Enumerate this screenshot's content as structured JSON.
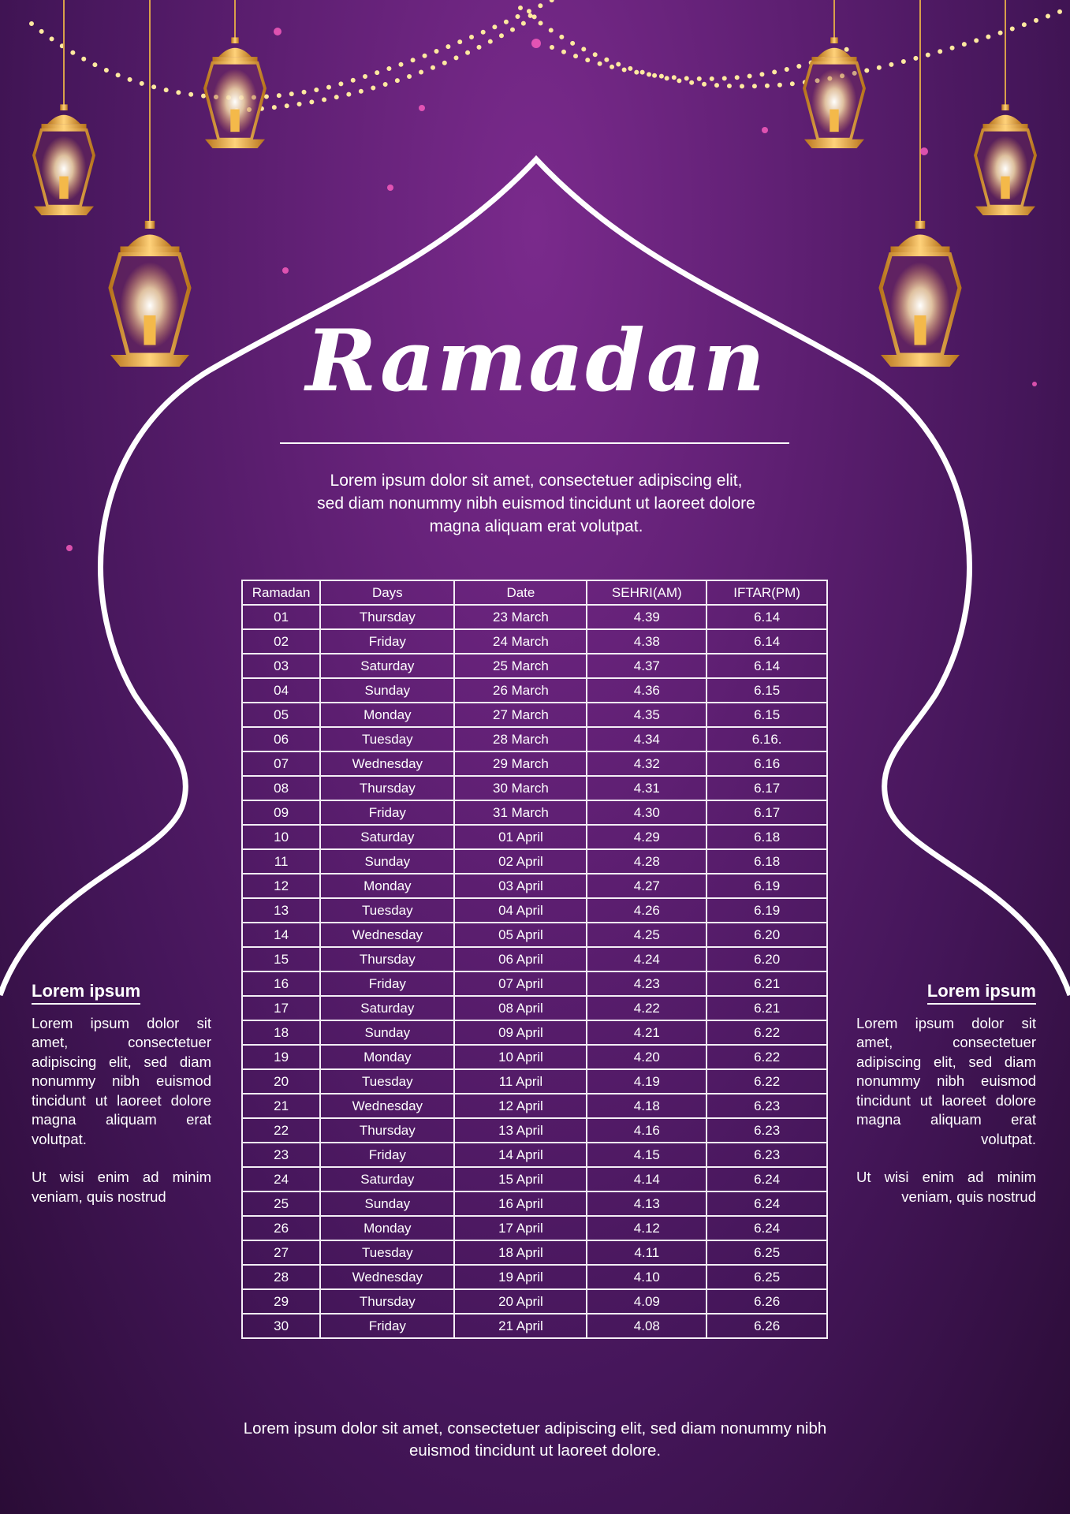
{
  "title": "Ramadan",
  "intro": "Lorem ipsum dolor sit amet, consectetuer adipiscing elit, sed diam nonummy nibh euismod tincidunt ut laoreet dolore magna aliquam erat volutpat.",
  "colors": {
    "background": "#5e1f72",
    "lantern_gold": "#e8a73a",
    "lines": "#ffffff"
  },
  "table": {
    "headers": [
      "Ramadan",
      "Days",
      "Date",
      "SEHRI(AM)",
      "IFTAR(PM)"
    ],
    "rows": [
      [
        "01",
        "Thursday",
        "23 March",
        "4.39",
        "6.14"
      ],
      [
        "02",
        "Friday",
        "24 March",
        "4.38",
        "6.14"
      ],
      [
        "03",
        "Saturday",
        "25 March",
        "4.37",
        "6.14"
      ],
      [
        "04",
        "Sunday",
        "26 March",
        "4.36",
        "6.15"
      ],
      [
        "05",
        "Monday",
        "27 March",
        "4.35",
        "6.15"
      ],
      [
        "06",
        "Tuesday",
        "28 March",
        "4.34",
        "6.16."
      ],
      [
        "07",
        "Wednesday",
        "29 March",
        "4.32",
        "6.16"
      ],
      [
        "08",
        "Thursday",
        "30 March",
        "4.31",
        "6.17"
      ],
      [
        "09",
        "Friday",
        "31 March",
        "4.30",
        "6.17"
      ],
      [
        "10",
        "Saturday",
        "01 April",
        "4.29",
        "6.18"
      ],
      [
        "11",
        "Sunday",
        "02 April",
        "4.28",
        "6.18"
      ],
      [
        "12",
        "Monday",
        "03 April",
        "4.27",
        "6.19"
      ],
      [
        "13",
        "Tuesday",
        "04 April",
        "4.26",
        "6.19"
      ],
      [
        "14",
        "Wednesday",
        "05 April",
        "4.25",
        "6.20"
      ],
      [
        "15",
        "Thursday",
        "06 April",
        "4.24",
        "6.20"
      ],
      [
        "16",
        "Friday",
        "07 April",
        "4.23",
        "6.21"
      ],
      [
        "17",
        "Saturday",
        "08 April",
        "4.22",
        "6.21"
      ],
      [
        "18",
        "Sunday",
        "09 April",
        "4.21",
        "6.22"
      ],
      [
        "19",
        "Monday",
        "10 April",
        "4.20",
        "6.22"
      ],
      [
        "20",
        "Tuesday",
        "11 April",
        "4.19",
        "6.22"
      ],
      [
        "21",
        "Wednesday",
        "12 April",
        "4.18",
        "6.23"
      ],
      [
        "22",
        "Thursday",
        "13 April",
        "4.16",
        "6.23"
      ],
      [
        "23",
        "Friday",
        "14 April",
        "4.15",
        "6.23"
      ],
      [
        "24",
        "Saturday",
        "15 April",
        "4.14",
        "6.24"
      ],
      [
        "25",
        "Sunday",
        "16 April",
        "4.13",
        "6.24"
      ],
      [
        "26",
        "Monday",
        "17 April",
        "4.12",
        "6.24"
      ],
      [
        "27",
        "Tuesday",
        "18 April",
        "4.11",
        "6.25"
      ],
      [
        "28",
        "Wednesday",
        "19 April",
        "4.10",
        "6.25"
      ],
      [
        "29",
        "Thursday",
        "20 April",
        "4.09",
        "6.26"
      ],
      [
        "30",
        "Friday",
        "21 April",
        "4.08",
        "6.26"
      ]
    ]
  },
  "left_panel": {
    "heading": "Lorem ipsum",
    "para1": "Lorem ipsum dolor sit amet, consectetuer adipiscing elit, sed diam nonummy nibh euismod tincidunt ut laoreet dolore magna aliquam erat volutpat.",
    "para2": "Ut wisi enim ad minim veniam, quis nostrud"
  },
  "right_panel": {
    "heading": "Lorem ipsum",
    "para1": "Lorem ipsum dolor sit amet, consectetuer adipiscing elit, sed diam nonummy nibh euismod tincidunt ut laoreet dolore magna aliquam erat volutpat.",
    "para2": "Ut wisi enim ad minim veniam, quis nostrud"
  },
  "footer": "Lorem ipsum dolor sit amet, consectetuer adipiscing elit, sed diam nonummy nibh euismod tincidunt ut laoreet dolore."
}
